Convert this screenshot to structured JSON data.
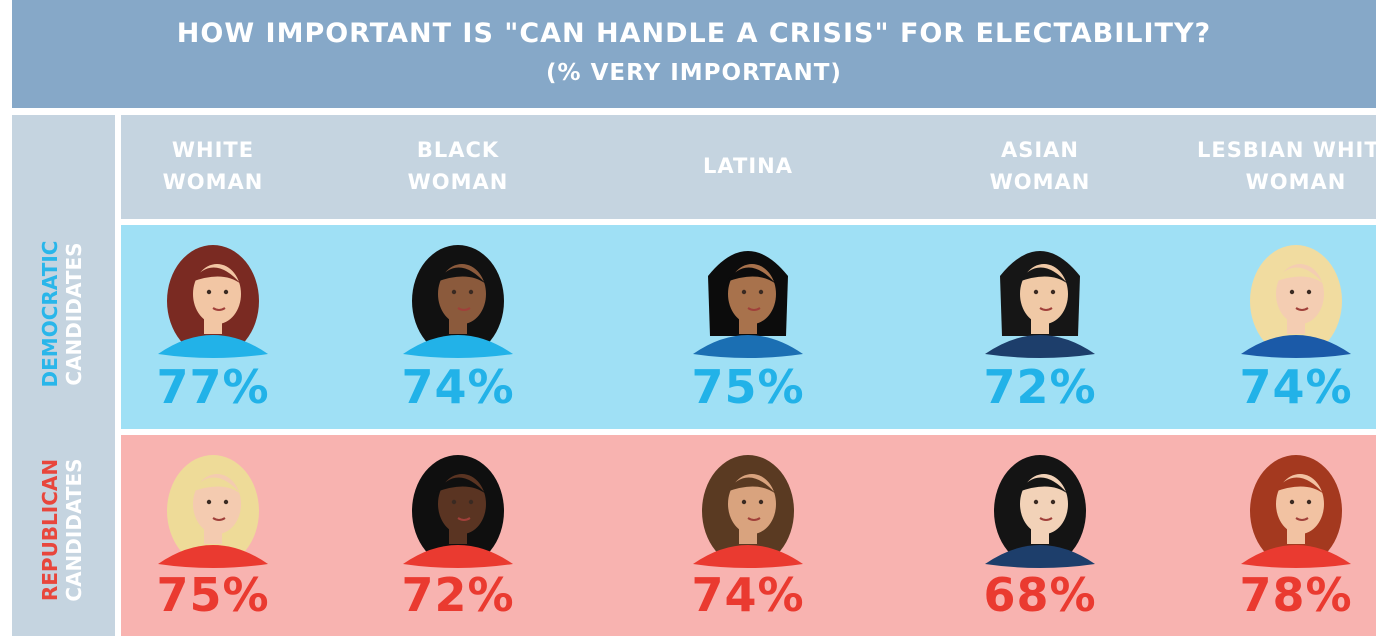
{
  "chart_data": {
    "type": "table",
    "title": "HOW IMPORTANT IS \"CAN HANDLE A CRISIS\" FOR ELECTABILITY?",
    "subtitle": "(% VERY IMPORTANT)",
    "columns": [
      [
        "WHITE",
        "WOMAN"
      ],
      [
        "BLACK",
        "WOMAN"
      ],
      [
        "LATINA"
      ],
      [
        "ASIAN",
        "WOMAN"
      ],
      [
        "LESBIAN WHITE",
        "WOMAN"
      ]
    ],
    "rows": [
      {
        "label": [
          "DEMOCRATIC",
          "CANDIDATES"
        ],
        "values": [
          77,
          74,
          75,
          72,
          74
        ],
        "display": [
          "77%",
          "74%",
          "75%",
          "72%",
          "74%"
        ]
      },
      {
        "label": [
          "REPUBLICAN",
          "CANDIDATES"
        ],
        "values": [
          75,
          72,
          74,
          68,
          78
        ],
        "display": [
          "75%",
          "72%",
          "74%",
          "68%",
          "78%"
        ]
      }
    ],
    "portrait_icons": [
      [
        "white-woman-portrait-icon",
        "black-woman-portrait-icon",
        "latina-portrait-icon",
        "asian-woman-portrait-icon",
        "lesbian-white-woman-portrait-icon"
      ],
      [
        "white-woman-portrait-icon",
        "black-woman-portrait-icon",
        "latina-portrait-icon",
        "asian-woman-portrait-icon",
        "lesbian-white-woman-portrait-icon"
      ]
    ],
    "colors": {
      "title_bar": "#86a8c8",
      "header": "#c5d4e0",
      "democratic_row": "#9fe0f5",
      "republican_row": "#f8b3b0",
      "democratic_text": "#22b2e8",
      "republican_text": "#ea3a30"
    }
  }
}
